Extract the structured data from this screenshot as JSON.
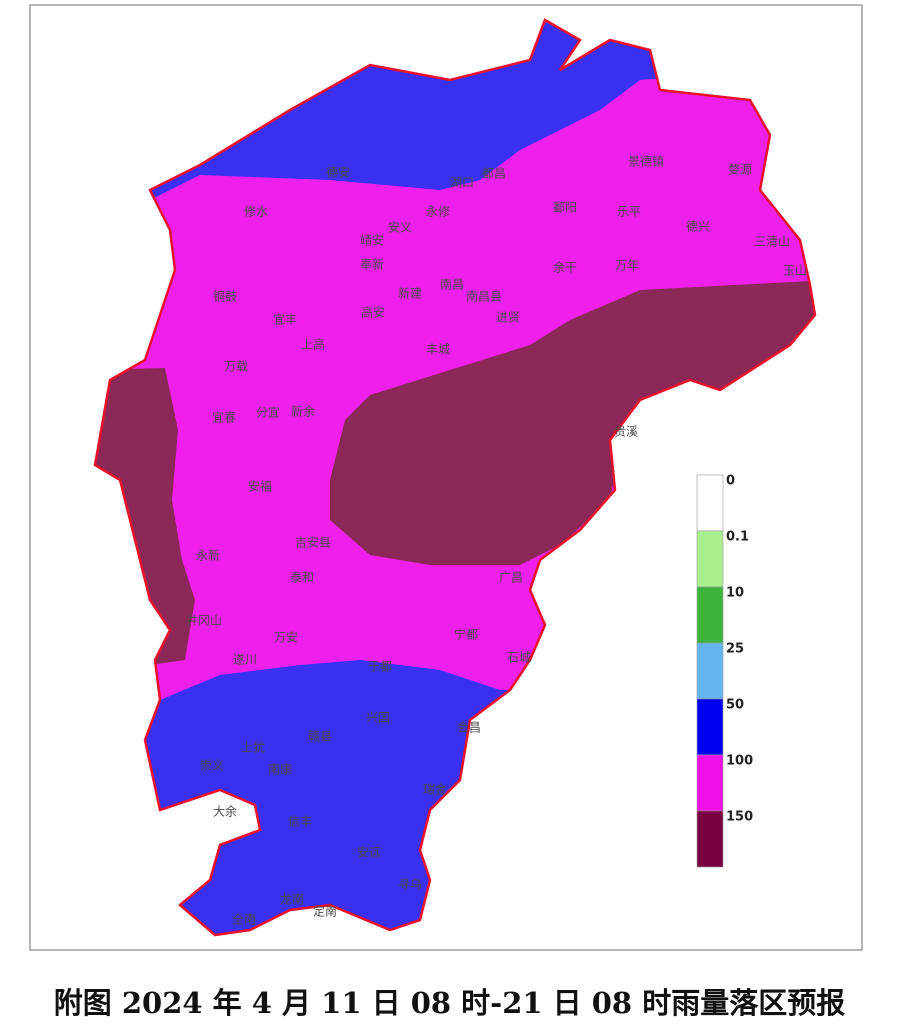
{
  "caption": "附图 2024 年 4 月 11 日 08 时-21 日 08 时雨量落区预报",
  "map_colors": {
    "base": "#f020ec",
    "north": "#3a30f0",
    "south": "#3a30f0",
    "east": "#8c2858",
    "west": "#8c2858",
    "border": "#e8102a"
  },
  "legend": {
    "labels": [
      "0",
      "0.1",
      "10",
      "25",
      "50",
      "100",
      "150"
    ],
    "colors": [
      "#ffffff",
      "#a8f08e",
      "#3cb43c",
      "#64b4f0",
      "#0000f0",
      "#f010ec",
      "#780040"
    ]
  },
  "places": [
    "修水",
    "永修",
    "安义",
    "靖安",
    "奉新",
    "南昌",
    "新建",
    "南昌县",
    "进贤",
    "高安",
    "宜丰",
    "铜鼓",
    "上高",
    "万载",
    "丰城",
    "宜春",
    "分宜",
    "新余",
    "鄱阳",
    "乐平",
    "德兴",
    "三清山",
    "余干",
    "万年",
    "玉山",
    "婺源",
    "景德镇",
    "都昌",
    "湖口",
    "德安",
    "贵溪",
    "安福",
    "吉安县",
    "永新",
    "泰和",
    "井冈山",
    "万安",
    "遂川",
    "宁都",
    "石城",
    "广昌",
    "大余",
    "定南",
    "会昌",
    "于都",
    "兴国",
    "赣县",
    "上犹",
    "崇义",
    "南康",
    "信丰",
    "龙南",
    "全南",
    "安远",
    "寻乌",
    "瑞金"
  ]
}
